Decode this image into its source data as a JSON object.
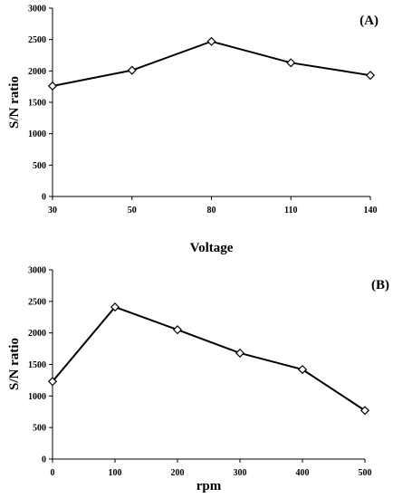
{
  "chart_data": [
    {
      "type": "line",
      "panel_label": "(A)",
      "categories": [
        "30",
        "50",
        "80",
        "110",
        "140"
      ],
      "series": [
        {
          "values": [
            1760,
            2010,
            2470,
            2130,
            1930
          ],
          "color": "#000000",
          "marker": "diamond"
        }
      ],
      "xlabel": "Voltage",
      "ylabel": "S/N ratio",
      "ylim": [
        0,
        3000
      ],
      "yticks": [
        "0",
        "500",
        "1000",
        "1500",
        "2000",
        "2500",
        "3000"
      ],
      "grid": false
    },
    {
      "type": "line",
      "panel_label": "(B)",
      "categories": [
        "0",
        "100",
        "200",
        "300",
        "400",
        "500"
      ],
      "series": [
        {
          "values": [
            1230,
            2410,
            2050,
            1680,
            1420,
            770
          ],
          "color": "#000000",
          "marker": "diamond"
        }
      ],
      "xlabel": "rpm",
      "ylabel": "S/N ratio",
      "ylim": [
        0,
        3000
      ],
      "yticks": [
        "0",
        "500",
        "1000",
        "1500",
        "2000",
        "2500",
        "3000"
      ],
      "grid": false
    }
  ]
}
